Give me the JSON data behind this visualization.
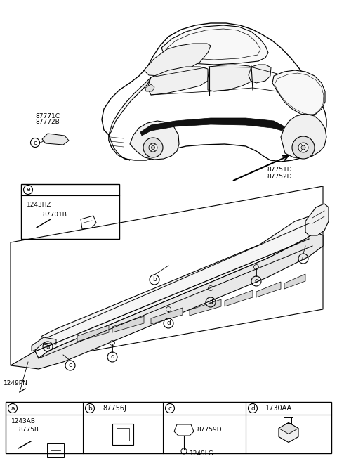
{
  "bg_color": "#ffffff",
  "parts": {
    "top_left_label1": "87771C",
    "top_left_label2": "87772B",
    "top_right_label1": "87751D",
    "top_right_label2": "87752D",
    "box_e_label1": "1243HZ",
    "box_e_label2": "87701B",
    "side_label": "1249PN",
    "legend_a_label1": "1243AB",
    "legend_a_label2": "87758",
    "legend_b_label": "87756J",
    "legend_c_label1": "87759D",
    "legend_c_label2": "1249LG",
    "legend_d_label": "1730AA"
  }
}
